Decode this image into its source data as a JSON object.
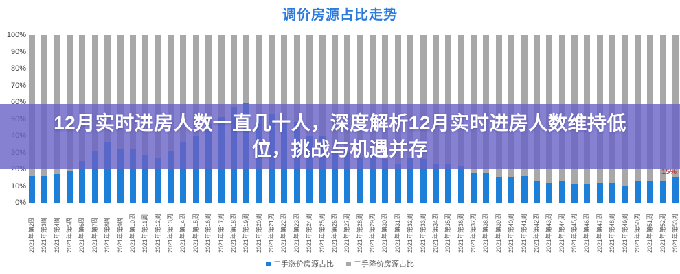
{
  "title": "调价房源占比走势",
  "colors": {
    "title": "#2b7cde",
    "up_series": "#1e7fd8",
    "down_series": "#a8a8a8",
    "overlay_band": "rgba(104,97,198,0.8)",
    "annotation": "#be4040",
    "axis_text": "#3f3f3f",
    "xlabel_text": "#595959",
    "baseline": "#d9d9d9"
  },
  "overlay": {
    "line1": "12月实时进房人数一直几十人，深度解析12月实时进房人数维持低",
    "line2": "位，挑战与机遇并存"
  },
  "annotation": {
    "text": "15%"
  },
  "legend": [
    {
      "label": "二手涨价房源占比",
      "color": "#1e7fd8"
    },
    {
      "label": "二手降价房源占比",
      "color": "#a8a8a8"
    }
  ],
  "y_axis": {
    "ticks": [
      "100%",
      "90%",
      "80%",
      "70%",
      "60%",
      "50%",
      "40%",
      "30%",
      "20%",
      "10%",
      "0%"
    ]
  },
  "chart_data": {
    "type": "bar",
    "stacked": true,
    "title": "调价房源占比走势",
    "xlabel": "",
    "ylabel": "",
    "ylim": [
      0,
      100
    ],
    "grid": false,
    "legend_position": "bottom",
    "categories": [
      "2021年第2周",
      "2021年第3周",
      "2021年第4周",
      "2021年第5周",
      "2021年第6周",
      "2021年第7周",
      "2021年第8周",
      "2021年第9周",
      "2021年第10周",
      "2021年第11周",
      "2021年第12周",
      "2021年第13周",
      "2021年第14周",
      "2021年第15周",
      "2021年第16周",
      "2021年第17周",
      "2021年第18周",
      "2021年第19周",
      "2021年第20周",
      "2021年第21周",
      "2021年第22周",
      "2021年第23周",
      "2021年第24周",
      "2021年第25周",
      "2021年第26周",
      "2021年第27周",
      "2021年第28周",
      "2021年第29周",
      "2021年第30周",
      "2021年第31周",
      "2021年第32周",
      "2021年第33周",
      "2021年第34周",
      "2021年第35周",
      "2021年第36周",
      "2021年第37周",
      "2021年第38周",
      "2021年第39周",
      "2021年第40周",
      "2021年第41周",
      "2021年第42周",
      "2021年第43周",
      "2021年第44周",
      "2021年第45周",
      "2021年第46周",
      "2021年第47周",
      "2021年第48周",
      "2021年第49周",
      "2021年第50周",
      "2021年第51周",
      "2021年第52周",
      "2021年第53周"
    ],
    "series": [
      {
        "name": "二手涨价房源占比",
        "color": "#1e7fd8",
        "values": [
          16,
          16,
          17,
          19,
          25,
          31,
          36,
          32,
          32,
          28,
          27,
          31,
          36,
          40,
          47,
          51,
          57,
          59,
          53,
          53,
          48,
          48,
          40,
          40,
          31,
          31,
          27,
          30,
          26,
          23,
          27,
          26,
          23,
          23,
          22,
          18,
          18,
          15,
          15,
          16,
          13,
          12,
          13,
          11,
          11,
          12,
          12,
          10,
          13,
          13,
          13,
          15
        ]
      },
      {
        "name": "二手降价房源占比",
        "color": "#a8a8a8",
        "values": [
          84,
          84,
          83,
          81,
          75,
          69,
          64,
          68,
          68,
          72,
          73,
          69,
          64,
          60,
          53,
          49,
          43,
          41,
          47,
          47,
          52,
          52,
          60,
          60,
          69,
          69,
          73,
          70,
          74,
          77,
          73,
          74,
          77,
          77,
          78,
          82,
          82,
          85,
          85,
          84,
          87,
          88,
          87,
          89,
          89,
          88,
          88,
          90,
          87,
          87,
          87,
          85
        ]
      }
    ],
    "annotations": [
      {
        "target": "2021年第53周",
        "text": "15%"
      }
    ]
  }
}
